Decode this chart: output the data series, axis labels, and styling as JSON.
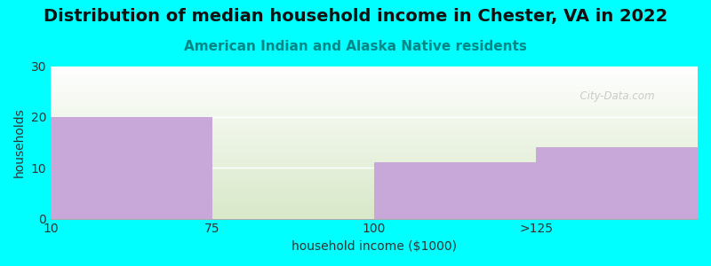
{
  "title": "Distribution of median household income in Chester, VA in 2022",
  "subtitle": "American Indian and Alaska Native residents",
  "xlabel": "household income ($1000)",
  "ylabel": "households",
  "bar_labels": [
    "10",
    "75",
    "100",
    ">125"
  ],
  "bar_values": [
    20,
    0,
    11,
    14
  ],
  "bar_color": "#C8A8D8",
  "bar_edge_color": "#C8A8D8",
  "ylim": [
    0,
    30
  ],
  "yticks": [
    0,
    10,
    20,
    30
  ],
  "x_tick_positions": [
    0,
    1,
    2,
    3
  ],
  "background_color": "#00FFFF",
  "plot_bg_top": "#FFFFFF",
  "plot_bg_bottom": "#D8E8C8",
  "title_fontsize": 14,
  "subtitle_fontsize": 11,
  "subtitle_color": "#008888",
  "axis_label_fontsize": 10,
  "watermark_text": "  City-Data.com",
  "watermark_color": "#BBBBBB"
}
